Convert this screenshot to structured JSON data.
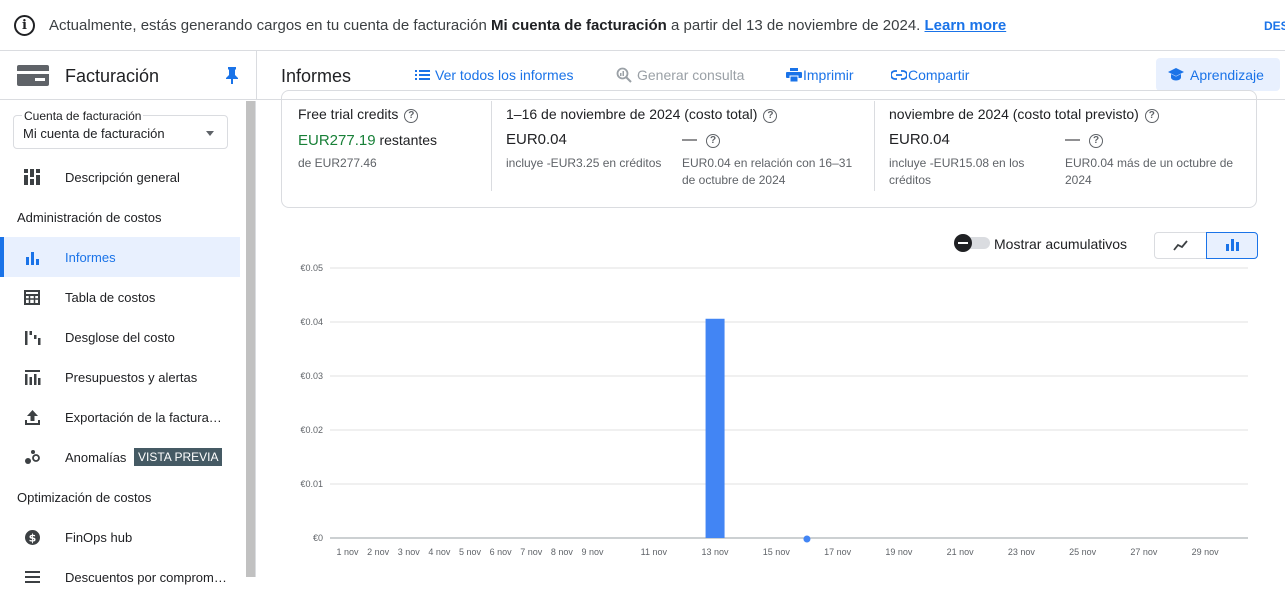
{
  "banner": {
    "text_before": "Actualmente, estás generando cargos en tu cuenta de facturación ",
    "account_bold": "Mi cuenta de facturación",
    "text_after": " a partir del 13 de noviembre de 2024. ",
    "learn_more": "Learn more",
    "dismiss": "DES"
  },
  "topbar": {
    "app_title": "Facturación",
    "page_title": "Informes",
    "view_all": "Ver todos los informes",
    "generate_query": "Generar consulta",
    "print": "Imprimir",
    "share": "Compartir",
    "learning": "Aprendizaje"
  },
  "sidebar": {
    "account_label": "Cuenta de facturación",
    "account_value": "Mi cuenta de facturación",
    "overview": "Descripción general",
    "section_cost_admin": "Administración de costos",
    "reports": "Informes",
    "cost_table": "Tabla de costos",
    "cost_breakdown": "Desglose del costo",
    "budgets": "Presupuestos y alertas",
    "export": "Exportación de la factura…",
    "anomalies": "Anomalías",
    "preview_badge": "VISTA PREVIA",
    "section_cost_opt": "Optimización de costos",
    "finops": "FinOps hub",
    "discounts": "Descuentos por comprom…"
  },
  "summary": {
    "credits_title": "Free trial credits",
    "credits_remaining_amount": "EUR277.19",
    "credits_remaining_word": " restantes",
    "credits_total": "de EUR277.46",
    "period_title": "1–16 de noviembre de 2024 (costo total)",
    "period_amount": "EUR0.04",
    "period_credits": "incluye -EUR3.25 en créditos",
    "period_delta": "—",
    "period_delta_note": "EUR0.04 en relación con 16–31 de octubre de 2024",
    "forecast_title": "noviembre de 2024 (costo total previsto)",
    "forecast_amount": "EUR0.04",
    "forecast_credits": "incluye -EUR15.08 en los créditos",
    "forecast_delta": "—",
    "forecast_delta_note": "EUR0.04 más de un octubre de 2024"
  },
  "controls": {
    "cumulative_label": "Mostrar acumulativos",
    "cumulative_on": false
  },
  "colors": {
    "accent": "#1a73e8",
    "bar": "#4285f4",
    "badge": "#455a64",
    "credits_green": "#188038"
  },
  "chart_data": {
    "type": "bar",
    "ylim": [
      0,
      0.05
    ],
    "yticks": [
      "€0",
      "€0.01",
      "€0.02",
      "€0.03",
      "€0.04",
      "€0.05"
    ],
    "ytick_values": [
      0,
      0.01,
      0.02,
      0.03,
      0.04,
      0.05
    ],
    "days": [
      1,
      2,
      3,
      4,
      5,
      6,
      7,
      8,
      9,
      10,
      11,
      12,
      13,
      14,
      15,
      16,
      17,
      18,
      19,
      20,
      21,
      22,
      23,
      24,
      25,
      26,
      27,
      28,
      29,
      30
    ],
    "xtick_labels": [
      "1 nov",
      "2 nov",
      "3 nov",
      "4 nov",
      "5 nov",
      "6 nov",
      "7 nov",
      "8 nov",
      "9 nov",
      "11 nov",
      "13 nov",
      "15 nov",
      "17 nov",
      "19 nov",
      "21 nov",
      "23 nov",
      "25 nov",
      "27 nov",
      "29 nov"
    ],
    "xtick_days": [
      1,
      2,
      3,
      4,
      5,
      6,
      7,
      8,
      9,
      11,
      13,
      15,
      17,
      19,
      21,
      23,
      25,
      27,
      29
    ],
    "values": [
      0,
      0,
      0,
      0,
      0,
      0,
      0,
      0,
      0,
      0,
      0,
      0,
      0.0406,
      0,
      0,
      0,
      0,
      0,
      0,
      0,
      0,
      0,
      0,
      0,
      0,
      0,
      0,
      0,
      0,
      0
    ],
    "today_marker_day": 16
  }
}
